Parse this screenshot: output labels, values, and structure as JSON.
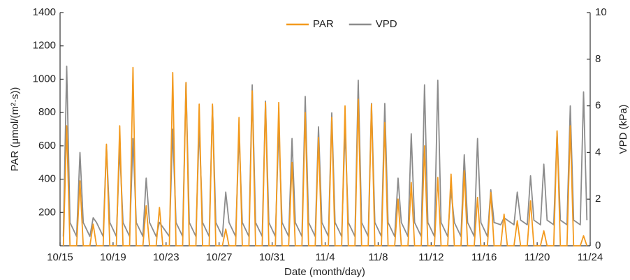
{
  "chart_data": {
    "type": "line",
    "x_label": "Date (month/day)",
    "y_label": "PAR (μmol/(m²·s))",
    "y2_label": "VPD (kPa)",
    "xlim": [
      0,
      40
    ],
    "xticks": [
      {
        "value": 0,
        "label": "10/15"
      },
      {
        "value": 4,
        "label": "10/19"
      },
      {
        "value": 8,
        "label": "10/23"
      },
      {
        "value": 12,
        "label": "10/27"
      },
      {
        "value": 16,
        "label": "10/31"
      },
      {
        "value": 20,
        "label": "11/4"
      },
      {
        "value": 24,
        "label": "11/8"
      },
      {
        "value": 28,
        "label": "11/12"
      },
      {
        "value": 32,
        "label": "11/16"
      },
      {
        "value": 36,
        "label": "11/20"
      },
      {
        "value": 40,
        "label": "11/24"
      }
    ],
    "ylim": [
      0,
      1400
    ],
    "yticks": [
      200,
      400,
      600,
      800,
      1000,
      1200,
      1400
    ],
    "y2lim": [
      0,
      10
    ],
    "y2ticks": [
      0,
      2,
      4,
      6,
      8,
      10
    ],
    "legend": "top",
    "x": [
      0.25,
      0.5,
      0.75,
      1.25,
      1.5,
      1.75,
      2.25,
      2.5,
      2.75,
      3.25,
      3.5,
      3.75,
      4.25,
      4.5,
      4.75,
      5.25,
      5.5,
      5.75,
      6.25,
      6.5,
      6.75,
      7.25,
      7.5,
      7.75,
      8.25,
      8.5,
      8.75,
      9.25,
      9.5,
      9.75,
      10.25,
      10.5,
      10.75,
      11.25,
      11.5,
      11.75,
      12.25,
      12.5,
      12.75,
      13.25,
      13.5,
      13.75,
      14.25,
      14.5,
      14.75,
      15.25,
      15.5,
      15.75,
      16.25,
      16.5,
      16.75,
      17.25,
      17.5,
      17.75,
      18.25,
      18.5,
      18.75,
      19.25,
      19.5,
      19.75,
      20.25,
      20.5,
      20.75,
      21.25,
      21.5,
      21.75,
      22.25,
      22.5,
      22.75,
      23.25,
      23.5,
      23.75,
      24.25,
      24.5,
      24.75,
      25.25,
      25.5,
      25.75,
      26.25,
      26.5,
      26.75,
      27.25,
      27.5,
      27.75,
      28.25,
      28.5,
      28.75,
      29.25,
      29.5,
      29.75,
      30.25,
      30.5,
      30.75,
      31.25,
      31.5,
      31.75,
      32.25,
      32.5,
      32.75,
      33.25,
      33.5,
      33.75,
      34.25,
      34.5,
      34.75,
      35.25,
      35.5,
      35.75,
      36.25,
      36.5,
      36.75,
      37.25,
      37.5,
      37.75,
      38.25,
      38.5,
      38.75,
      39.25,
      39.5,
      39.75
    ],
    "series": [
      {
        "name": "VPD",
        "color": "#8c8c8c",
        "axis": "y2",
        "values": [
          0.4,
          7.7,
          1.0,
          0.4,
          4.0,
          1.0,
          0.4,
          1.2,
          1.0,
          0.4,
          4.3,
          1.0,
          0.4,
          4.2,
          1.0,
          0.4,
          4.6,
          1.0,
          0.4,
          2.9,
          1.0,
          0.4,
          1.0,
          0.8,
          0.4,
          5.0,
          1.0,
          0.4,
          7.0,
          1.0,
          0.4,
          5.1,
          1.0,
          0.4,
          6.0,
          1.0,
          0.4,
          2.3,
          1.0,
          0.4,
          4.8,
          1.0,
          0.4,
          6.9,
          1.0,
          0.4,
          6.2,
          1.0,
          0.4,
          5.1,
          1.0,
          0.4,
          4.6,
          1.0,
          0.4,
          6.4,
          1.0,
          0.4,
          5.1,
          1.0,
          0.4,
          5.7,
          1.0,
          0.4,
          5.0,
          1.0,
          0.4,
          7.1,
          1.0,
          0.4,
          6.1,
          1.0,
          0.4,
          6.1,
          1.0,
          0.4,
          2.9,
          1.0,
          0.4,
          4.8,
          1.0,
          0.4,
          6.9,
          1.0,
          0.4,
          7.1,
          1.0,
          0.4,
          2.4,
          1.0,
          0.4,
          3.9,
          1.0,
          0.4,
          4.6,
          1.0,
          0.4,
          2.4,
          1.0,
          0.9,
          1.2,
          1.1,
          0.9,
          2.3,
          1.1,
          0.9,
          3.0,
          1.1,
          0.9,
          3.5,
          1.1,
          0.9,
          4.9,
          1.1,
          0.9,
          6.0,
          1.1,
          0.9,
          6.6,
          1.1
        ]
      },
      {
        "name": "PAR",
        "color": "#f39a1e",
        "values": [
          0,
          720,
          0,
          0,
          390,
          0,
          0,
          130,
          0,
          0,
          610,
          0,
          0,
          720,
          0,
          0,
          1070,
          0,
          0,
          240,
          0,
          0,
          230,
          0,
          0,
          1040,
          0,
          0,
          980,
          0,
          0,
          850,
          0,
          0,
          850,
          0,
          0,
          100,
          0,
          0,
          770,
          0,
          0,
          930,
          0,
          0,
          860,
          0,
          0,
          860,
          0,
          0,
          500,
          0,
          0,
          800,
          0,
          0,
          650,
          0,
          0,
          770,
          0,
          0,
          840,
          0,
          0,
          880,
          0,
          0,
          850,
          0,
          0,
          740,
          0,
          0,
          280,
          0,
          0,
          380,
          0,
          0,
          600,
          0,
          0,
          410,
          0,
          0,
          430,
          0,
          0,
          450,
          0,
          0,
          290,
          0,
          0,
          320,
          0,
          0,
          190,
          0,
          0,
          150,
          0,
          0,
          270,
          0,
          0,
          90,
          0,
          0,
          690,
          0,
          0,
          720,
          0,
          0,
          60,
          0
        ]
      }
    ]
  }
}
